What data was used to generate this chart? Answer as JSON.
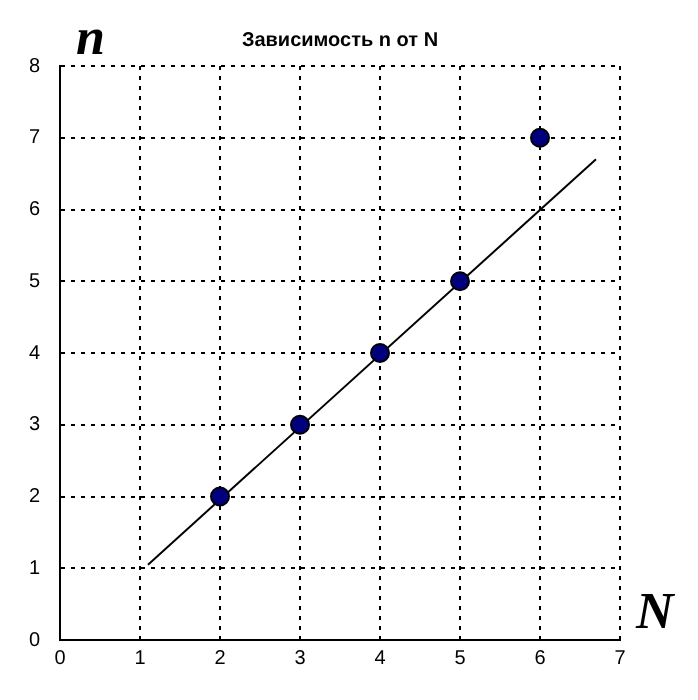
{
  "chart_data": {
    "type": "scatter",
    "title": "Зависимость n от N",
    "xlabel": "N",
    "ylabel": "n",
    "xlim": [
      0,
      7
    ],
    "ylim": [
      0,
      8
    ],
    "xticks": [
      0,
      1,
      2,
      3,
      4,
      5,
      6,
      7
    ],
    "yticks": [
      0,
      1,
      2,
      3,
      4,
      5,
      6,
      7,
      8
    ],
    "grid": true,
    "marker": "circle",
    "series": [
      {
        "color": "#00007f",
        "x": [
          2,
          3,
          4,
          5,
          6
        ],
        "values": [
          2,
          3,
          4,
          5,
          7
        ]
      },
      {
        "type": "line",
        "color": "#000000",
        "x": [
          1.1,
          6.7
        ],
        "values": [
          1.05,
          6.7
        ],
        "marker": "none"
      }
    ]
  }
}
